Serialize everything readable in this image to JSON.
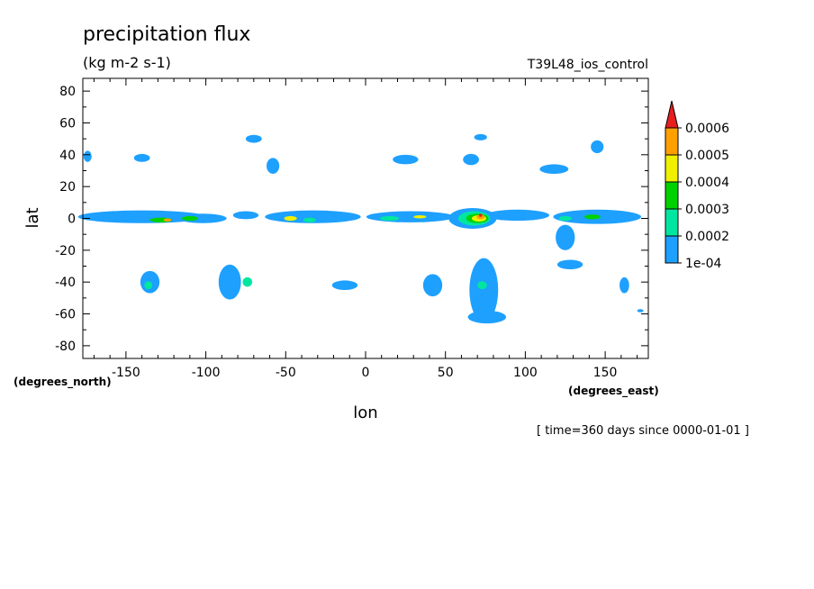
{
  "chart_data": {
    "type": "heatmap",
    "title": "precipitation flux",
    "units": "(kg m-2 s-1)",
    "experiment": "T39L48_ios_control",
    "xlabel": "lon",
    "ylabel": "lat",
    "x_units": "(degrees_east)",
    "y_units": "(degrees_north)",
    "time_label": "[ time=360 days since 0000-01-01 ]",
    "xlim": [
      -177,
      177
    ],
    "ylim": [
      -88,
      88
    ],
    "x_ticks": [
      -150,
      -100,
      -50,
      0,
      50,
      100,
      150
    ],
    "x_tick_labels": [
      "-150",
      "-100",
      "-50",
      "0",
      "50",
      "100",
      "150"
    ],
    "y_ticks": [
      80,
      60,
      40,
      20,
      0,
      -20,
      -40,
      -60,
      -80
    ],
    "y_tick_labels": [
      "80",
      "60",
      "40",
      "20",
      "0",
      "-20",
      "-40",
      "-60",
      "-80"
    ],
    "colorbar": {
      "levels": [
        0.0001,
        0.0002,
        0.0003,
        0.0004,
        0.0005,
        0.0006
      ],
      "labels": [
        "1e-04",
        "0.0002",
        "0.0003",
        "0.0004",
        "0.0005",
        "0.0006"
      ],
      "colors": [
        "#1ea0ff",
        "#00e6a0",
        "#00d200",
        "#f0f000",
        "#ffa000",
        "#e61e1e"
      ]
    },
    "regions": [
      {
        "name": "itcz-east-pacific",
        "lon": -140,
        "lat": 1,
        "width": 80,
        "height": 8,
        "level": 1
      },
      {
        "name": "itcz-east-pacific-core",
        "lon": -128,
        "lat": -1,
        "width": 14,
        "height": 3,
        "level": 3
      },
      {
        "name": "itcz-east-pacific-max",
        "lon": -124,
        "lat": -1,
        "width": 5,
        "height": 2,
        "level": 5
      },
      {
        "name": "itcz-central-pacific",
        "lon": -102,
        "lat": 0,
        "width": 30,
        "height": 6,
        "level": 1
      },
      {
        "name": "itcz-central-pacific-core",
        "lon": -110,
        "lat": 0,
        "width": 10,
        "height": 3,
        "level": 3
      },
      {
        "name": "itcz-mid",
        "lon": -75,
        "lat": 2,
        "width": 16,
        "height": 5,
        "level": 1
      },
      {
        "name": "itcz-atlantic",
        "lon": -33,
        "lat": 1,
        "width": 60,
        "height": 8,
        "level": 1
      },
      {
        "name": "itcz-atlantic-core",
        "lon": -47,
        "lat": 0,
        "width": 8,
        "height": 3,
        "level": 4
      },
      {
        "name": "itcz-atlantic-core2",
        "lon": -35,
        "lat": -1,
        "width": 8,
        "height": 3,
        "level": 2
      },
      {
        "name": "itcz-africa",
        "lon": 28,
        "lat": 1,
        "width": 55,
        "height": 7,
        "level": 1
      },
      {
        "name": "itcz-africa-core",
        "lon": 15,
        "lat": 0,
        "width": 12,
        "height": 3,
        "level": 2
      },
      {
        "name": "itcz-africa-core2",
        "lon": 34,
        "lat": 1,
        "width": 8,
        "height": 2,
        "level": 4
      },
      {
        "name": "indian-ocean",
        "lon": 67,
        "lat": 0,
        "width": 30,
        "height": 13,
        "level": 1
      },
      {
        "name": "indian-ocean-l2",
        "lon": 68,
        "lat": 0,
        "width": 20,
        "height": 9,
        "level": 2
      },
      {
        "name": "indian-ocean-l3",
        "lon": 70,
        "lat": 0,
        "width": 14,
        "height": 6,
        "level": 3
      },
      {
        "name": "indian-ocean-l4",
        "lon": 71,
        "lat": 0,
        "width": 9,
        "height": 4,
        "level": 4
      },
      {
        "name": "indian-ocean-l5",
        "lon": 72,
        "lat": 1,
        "width": 5,
        "height": 3,
        "level": 5
      },
      {
        "name": "indian-ocean-l6",
        "lon": 72,
        "lat": 2,
        "width": 2,
        "height": 2,
        "level": 6
      },
      {
        "name": "maritime-continent",
        "lon": 95,
        "lat": 2,
        "width": 40,
        "height": 7,
        "level": 1
      },
      {
        "name": "west-pacific",
        "lon": 145,
        "lat": 1,
        "width": 55,
        "height": 9,
        "level": 1
      },
      {
        "name": "west-pacific-core",
        "lon": 142,
        "lat": 1,
        "width": 10,
        "height": 3,
        "level": 3
      },
      {
        "name": "west-pacific-core2",
        "lon": 125,
        "lat": 0,
        "width": 8,
        "height": 3,
        "level": 2
      },
      {
        "name": "spcz",
        "lon": 125,
        "lat": -12,
        "width": 12,
        "height": 16,
        "level": 1
      },
      {
        "name": "n-pacific-1",
        "lon": -70,
        "lat": 50,
        "width": 10,
        "height": 5,
        "level": 1
      },
      {
        "name": "n-pacific-2",
        "lon": -58,
        "lat": 33,
        "width": 8,
        "height": 10,
        "level": 1
      },
      {
        "name": "n-mid-1",
        "lon": -140,
        "lat": 38,
        "width": 10,
        "height": 5,
        "level": 1
      },
      {
        "name": "n-mid-2",
        "lon": 25,
        "lat": 37,
        "width": 16,
        "height": 6,
        "level": 1
      },
      {
        "name": "n-mid-3",
        "lon": 66,
        "lat": 37,
        "width": 10,
        "height": 7,
        "level": 1
      },
      {
        "name": "n-mid-4",
        "lon": 72,
        "lat": 51,
        "width": 8,
        "height": 4,
        "level": 1
      },
      {
        "name": "n-mid-5",
        "lon": 118,
        "lat": 31,
        "width": 18,
        "height": 6,
        "level": 1
      },
      {
        "name": "n-mid-6",
        "lon": 145,
        "lat": 45,
        "width": 8,
        "height": 8,
        "level": 1
      },
      {
        "name": "n-mid-7",
        "lon": -174,
        "lat": 39,
        "width": 5,
        "height": 7,
        "level": 1
      },
      {
        "name": "s-mid-1",
        "lon": -135,
        "lat": -40,
        "width": 12,
        "height": 14,
        "level": 1
      },
      {
        "name": "s-mid-1-core",
        "lon": -136,
        "lat": -42,
        "width": 5,
        "height": 5,
        "level": 2
      },
      {
        "name": "s-mid-2",
        "lon": -85,
        "lat": -40,
        "width": 14,
        "height": 22,
        "level": 1
      },
      {
        "name": "s-mid-2-core",
        "lon": -74,
        "lat": -40,
        "width": 6,
        "height": 6,
        "level": 2
      },
      {
        "name": "s-mid-3",
        "lon": -13,
        "lat": -42,
        "width": 16,
        "height": 6,
        "level": 1
      },
      {
        "name": "s-mid-4",
        "lon": 42,
        "lat": -42,
        "width": 12,
        "height": 14,
        "level": 1
      },
      {
        "name": "s-mid-5",
        "lon": 74,
        "lat": -45,
        "width": 18,
        "height": 40,
        "level": 1
      },
      {
        "name": "s-mid-5-core",
        "lon": 73,
        "lat": -42,
        "width": 6,
        "height": 5,
        "level": 2
      },
      {
        "name": "s-mid-6",
        "lon": 76,
        "lat": -62,
        "width": 24,
        "height": 8,
        "level": 1
      },
      {
        "name": "s-mid-7",
        "lon": 128,
        "lat": -29,
        "width": 16,
        "height": 6,
        "level": 1
      },
      {
        "name": "s-mid-8",
        "lon": 162,
        "lat": -42,
        "width": 6,
        "height": 10,
        "level": 1
      },
      {
        "name": "s-mid-9",
        "lon": 172,
        "lat": -58,
        "width": 4,
        "height": 2,
        "level": 1
      }
    ]
  }
}
